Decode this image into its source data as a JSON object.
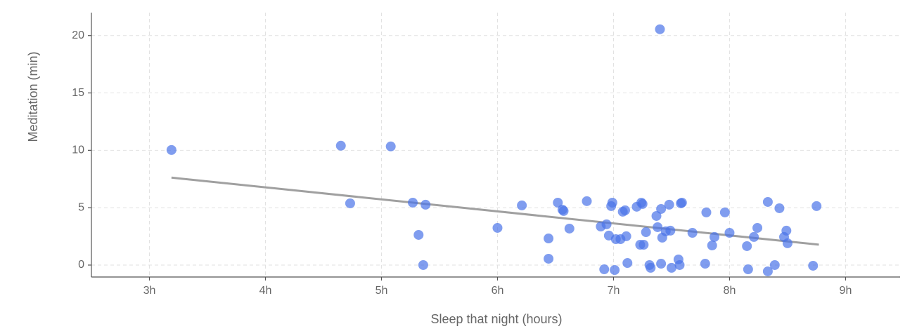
{
  "chart_data": {
    "type": "scatter",
    "x_label": "Sleep that night (hours)",
    "y_label": "Meditation (min)",
    "color": "#4a74e8",
    "grid": true,
    "xlim": [
      2.5,
      9.47
    ],
    "ylim": [
      -1.04,
      22
    ],
    "xticks": [
      {
        "value": 3,
        "label": "3h"
      },
      {
        "value": 4,
        "label": "4h"
      },
      {
        "value": 5,
        "label": "5h"
      },
      {
        "value": 6,
        "label": "6h"
      },
      {
        "value": 7,
        "label": "7h"
      },
      {
        "value": 8,
        "label": "8h"
      },
      {
        "value": 9,
        "label": "9h"
      }
    ],
    "yticks": [
      0,
      5,
      10,
      15,
      20
    ],
    "x": [
      3.19,
      4.65,
      4.73,
      5.08,
      5.27,
      5.38,
      5.32,
      5.36,
      6.0,
      6.21,
      6.44,
      6.44,
      6.52,
      6.56,
      6.57,
      6.62,
      6.77,
      6.89,
      6.94,
      6.96,
      6.98,
      6.99,
      6.92,
      7.01,
      7.02,
      7.06,
      7.08,
      7.1,
      7.12,
      7.11,
      7.2,
      7.24,
      7.25,
      7.23,
      7.26,
      7.28,
      7.31,
      7.32,
      7.37,
      7.38,
      7.4,
      7.41,
      7.41,
      7.42,
      7.45,
      7.48,
      7.49,
      7.5,
      7.56,
      7.57,
      7.58,
      7.59,
      7.68,
      7.79,
      7.8,
      7.85,
      7.87,
      7.96,
      8.0,
      8.15,
      8.16,
      8.21,
      8.24,
      8.33,
      8.33,
      8.39,
      8.43,
      8.47,
      8.49,
      8.5,
      8.72,
      8.75
    ],
    "values": [
      10.03,
      10.4,
      5.38,
      10.34,
      5.44,
      5.26,
      2.63,
      0,
      3.24,
      5.2,
      2.32,
      0.55,
      5.44,
      4.83,
      4.71,
      3.18,
      5.57,
      3.36,
      3.55,
      2.57,
      5.14,
      5.44,
      -0.37,
      -0.43,
      2.26,
      2.26,
      4.65,
      4.77,
      0.18,
      2.51,
      5.08,
      5.44,
      5.32,
      1.77,
      1.77,
      2.87,
      0,
      -0.24,
      4.28,
      3.3,
      20.55,
      4.89,
      0.12,
      2.39,
      2.94,
      5.26,
      3.0,
      -0.24,
      0.49,
      0,
      5.38,
      5.44,
      2.81,
      0.12,
      4.59,
      1.71,
      2.45,
      4.59,
      2.81,
      1.65,
      -0.37,
      2.45,
      3.24,
      5.5,
      -0.55,
      0,
      4.95,
      2.45,
      3.0,
      1.9,
      -0.06,
      5.14
    ],
    "trendline": {
      "x": [
        3.19,
        8.77
      ],
      "values": [
        7.62,
        1.78
      ],
      "color": "#a0a0a0"
    }
  }
}
